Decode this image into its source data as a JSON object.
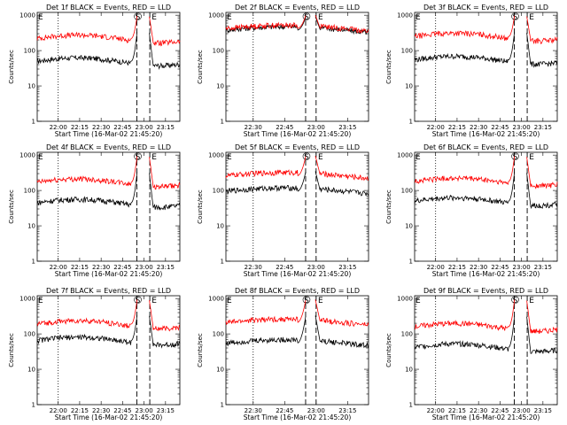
{
  "ylabel": "Counts/sec",
  "xlabel": "Start Time (16-Mar-02 21:45:20)",
  "ytick_labels": [
    "1",
    "10",
    "100",
    "1000"
  ],
  "ylim": [
    1,
    1200
  ],
  "yscale": "log",
  "grid": false,
  "colors": {
    "events": "#000000",
    "lld": "#ff0000",
    "axes": "#000000"
  },
  "marker_labels": {
    "start": "E",
    "saa_in": "S",
    "saa_out": "E"
  },
  "chart_data": [
    {
      "type": "line",
      "title": "Det 1f BLACK = Events, RED = LLD",
      "xlim": [
        "21:45:20",
        "23:25:00"
      ],
      "x_ticks": [
        "22:00",
        "22:15",
        "22:30",
        "22:45",
        "23:00",
        "23:15"
      ],
      "vlines": {
        "dotted": "22:00",
        "dashed_in": "22:55",
        "dashed_out": "23:04"
      },
      "series": [
        {
          "role": "events",
          "baseline": 50,
          "spike": 400
        },
        {
          "role": "lld",
          "baseline": 220,
          "spike": 1100
        }
      ]
    },
    {
      "type": "line",
      "title": "Det 2f BLACK = Events, RED = LLD",
      "xlim": [
        "22:17:00",
        "23:25:00"
      ],
      "x_ticks": [
        "22:30",
        "22:45",
        "23:00",
        "23:15"
      ],
      "vlines": {
        "dotted": "22:30",
        "dashed_in": "22:55",
        "dashed_out": "23:00"
      },
      "series": [
        {
          "role": "events",
          "baseline": 380,
          "spike": 1000
        },
        {
          "role": "lld",
          "baseline": 420,
          "spike": 1100
        }
      ]
    },
    {
      "type": "line",
      "title": "Det 3f BLACK = Events, RED = LLD",
      "xlim": [
        "21:45:20",
        "23:25:00"
      ],
      "x_ticks": [
        "22:00",
        "22:15",
        "22:30",
        "22:45",
        "23:00",
        "23:15"
      ],
      "vlines": {
        "dotted": "22:00",
        "dashed_in": "22:55",
        "dashed_out": "23:04"
      },
      "series": [
        {
          "role": "events",
          "baseline": 55,
          "spike": 400
        },
        {
          "role": "lld",
          "baseline": 250,
          "spike": 1100
        }
      ]
    },
    {
      "type": "line",
      "title": "Det 4f BLACK = Events, RED = LLD",
      "xlim": [
        "21:45:20",
        "23:25:00"
      ],
      "x_ticks": [
        "22:00",
        "22:15",
        "22:30",
        "22:45",
        "23:00",
        "23:15"
      ],
      "vlines": {
        "dotted": "22:00",
        "dashed_in": "22:55",
        "dashed_out": "23:04"
      },
      "series": [
        {
          "role": "events",
          "baseline": 45,
          "spike": 400
        },
        {
          "role": "lld",
          "baseline": 170,
          "spike": 1100
        }
      ]
    },
    {
      "type": "line",
      "title": "Det 5f BLACK = Events, RED = LLD",
      "xlim": [
        "22:17:00",
        "23:25:00"
      ],
      "x_ticks": [
        "22:30",
        "22:45",
        "23:00",
        "23:15"
      ],
      "vlines": {
        "dotted": "22:30",
        "dashed_in": "22:55",
        "dashed_out": "23:00"
      },
      "series": [
        {
          "role": "events",
          "baseline": 95,
          "spike": 400
        },
        {
          "role": "lld",
          "baseline": 260,
          "spike": 1100
        }
      ]
    },
    {
      "type": "line",
      "title": "Det 6f BLACK = Events, RED = LLD",
      "xlim": [
        "21:45:20",
        "23:25:00"
      ],
      "x_ticks": [
        "22:00",
        "22:15",
        "22:30",
        "22:45",
        "23:00",
        "23:15"
      ],
      "vlines": {
        "dotted": "22:00",
        "dashed_in": "22:55",
        "dashed_out": "23:04"
      },
      "series": [
        {
          "role": "events",
          "baseline": 50,
          "spike": 400
        },
        {
          "role": "lld",
          "baseline": 180,
          "spike": 1100
        }
      ]
    },
    {
      "type": "line",
      "title": "Det 7f BLACK = Events, RED = LLD",
      "xlim": [
        "21:45:20",
        "23:25:00"
      ],
      "x_ticks": [
        "22:00",
        "22:15",
        "22:30",
        "22:45",
        "23:00",
        "23:15"
      ],
      "vlines": {
        "dotted": "22:00",
        "dashed_in": "22:55",
        "dashed_out": "23:04"
      },
      "series": [
        {
          "role": "events",
          "baseline": 65,
          "spike": 400
        },
        {
          "role": "lld",
          "baseline": 190,
          "spike": 1100
        }
      ]
    },
    {
      "type": "line",
      "title": "Det 8f BLACK = Events, RED = LLD",
      "xlim": [
        "22:17:00",
        "23:25:00"
      ],
      "x_ticks": [
        "22:30",
        "22:45",
        "23:00",
        "23:15"
      ],
      "vlines": {
        "dotted": "22:30",
        "dashed_in": "22:55",
        "dashed_out": "23:00"
      },
      "series": [
        {
          "role": "events",
          "baseline": 55,
          "spike": 400
        },
        {
          "role": "lld",
          "baseline": 210,
          "spike": 1100
        }
      ]
    },
    {
      "type": "line",
      "title": "Det 9f BLACK = Events, RED = LLD",
      "xlim": [
        "21:45:20",
        "23:25:00"
      ],
      "x_ticks": [
        "22:00",
        "22:15",
        "22:30",
        "22:45",
        "23:00",
        "23:15"
      ],
      "vlines": {
        "dotted": "22:00",
        "dashed_in": "22:55",
        "dashed_out": "23:04"
      },
      "series": [
        {
          "role": "events",
          "baseline": 42,
          "spike": 400
        },
        {
          "role": "lld",
          "baseline": 160,
          "spike": 1100
        }
      ]
    }
  ]
}
